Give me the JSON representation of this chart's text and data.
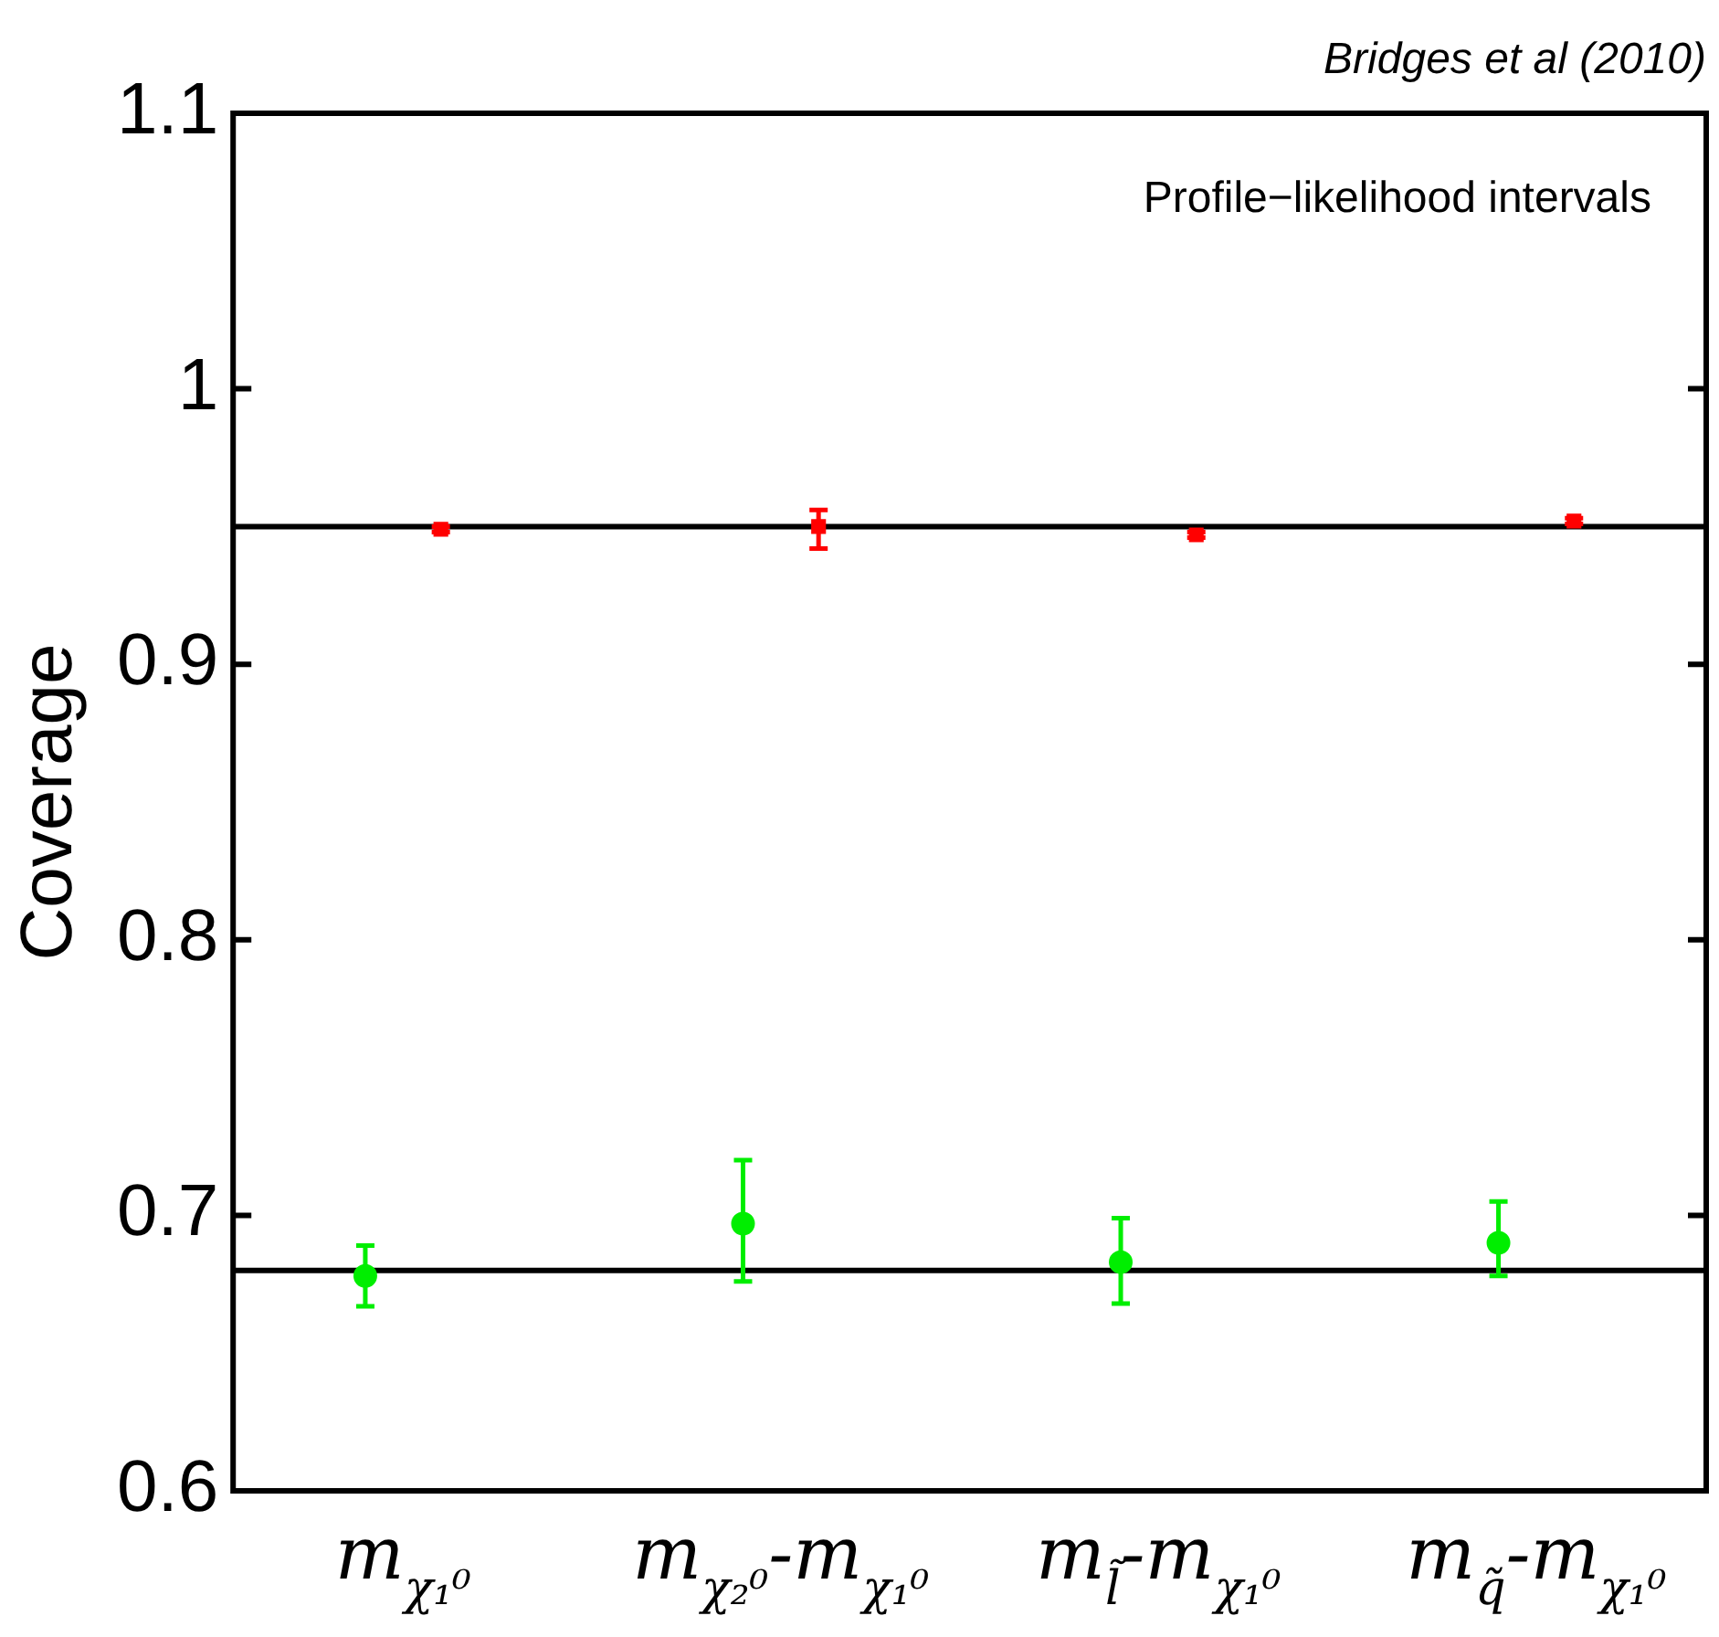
{
  "chart_data": {
    "type": "scatter",
    "ylabel": "Coverage",
    "categories": [
      "m$_{χ₁⁰}$",
      "m$_{χ₂⁰}$-m$_{χ₁⁰}$",
      "m$_{l̃}$-m$_{χ₁⁰}$",
      "m$_{q̃}$-m$_{χ₁⁰}$"
    ],
    "series": [
      {
        "color": "#ff0000",
        "marker": "square",
        "values": [
          0.949,
          0.95,
          0.947,
          0.952
        ],
        "errors": [
          0.001,
          [
            0.942,
            0.956
          ],
          0.001,
          0.001
        ]
      },
      {
        "color": "#00ee00",
        "marker": "circle",
        "values": [
          0.678,
          0.697,
          0.683,
          0.69
        ],
        "errors": [
          [
            0.667,
            0.689
          ],
          [
            0.676,
            0.72
          ],
          [
            0.668,
            0.699
          ],
          [
            0.678,
            0.705
          ]
        ]
      }
    ],
    "ylim": [
      0.6,
      1.1
    ],
    "yticks": [
      0.6,
      0.7,
      0.8,
      0.9,
      1,
      1.1
    ],
    "grid": false,
    "legend": false,
    "ref_lines": [
      {
        "axis": "y",
        "value": 0.95,
        "color": "#000000"
      },
      {
        "axis": "y",
        "value": 0.68,
        "color": "#000000"
      }
    ],
    "annotations": [
      "Bridges et al (2010)",
      "Profile−likelihood intervals"
    ]
  }
}
